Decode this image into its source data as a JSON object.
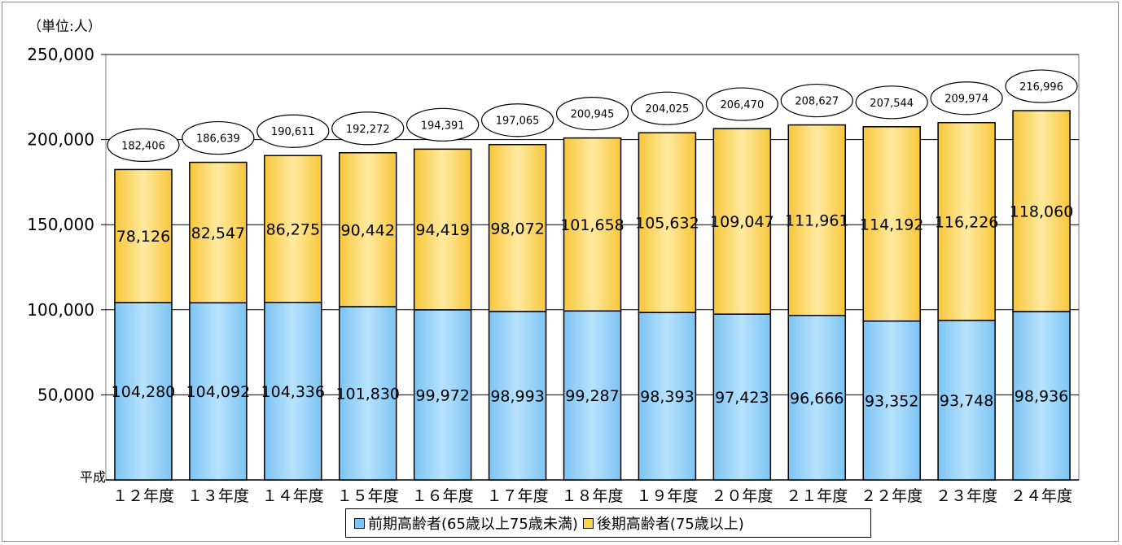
{
  "colors": {
    "early": "#7cc4f4",
    "late": "#fcd34d"
  },
  "unit_label": "（単位:人）",
  "era_label": "平成",
  "chart_data": {
    "type": "bar",
    "stacked": true,
    "categories": [
      "１２年度",
      "１３年度",
      "１４年度",
      "１５年度",
      "１６年度",
      "１７年度",
      "１８年度",
      "１９年度",
      "２０年度",
      "２１年度",
      "２２年度",
      "２３年度",
      "２４年度"
    ],
    "series": [
      {
        "name": "前期高齢者(65歳以上75歳未満)",
        "values": [
          104280,
          104092,
          104336,
          101830,
          99972,
          98993,
          99287,
          98393,
          97423,
          96666,
          93352,
          93748,
          98936
        ]
      },
      {
        "name": "後期高齢者(75歳以上)",
        "values": [
          78126,
          82547,
          86275,
          90442,
          94419,
          98072,
          101658,
          105632,
          109047,
          111961,
          114192,
          116226,
          118060
        ]
      }
    ],
    "totals": [
      182406,
      186639,
      190611,
      192272,
      194391,
      197065,
      200945,
      204025,
      206470,
      208627,
      207544,
      209974,
      216996
    ],
    "ylim": [
      0,
      250000
    ],
    "yticks": [
      "250,000",
      "200,000",
      "150,000",
      "100,000",
      "50,000"
    ],
    "ytick_values": [
      250000,
      200000,
      150000,
      100000,
      50000
    ],
    "grid": true,
    "legend_position": "bottom"
  }
}
